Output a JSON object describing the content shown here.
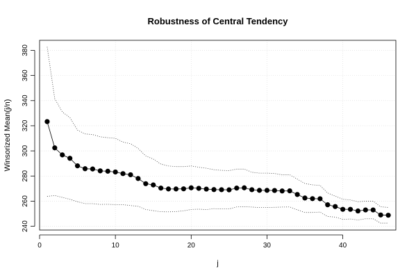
{
  "chart_data": {
    "type": "scatter",
    "title": "Robustness of Central Tendency",
    "xlabel": "j",
    "ylabel": "Winsorized Mean(j/n)",
    "xlim": [
      0,
      47
    ],
    "ylim": [
      237,
      388
    ],
    "xticks": [
      0,
      10,
      20,
      30,
      40
    ],
    "xtick_labels": [
      "0",
      "10",
      "20",
      "30",
      "40"
    ],
    "yticks": [
      240,
      260,
      280,
      300,
      320,
      340,
      360,
      380
    ],
    "ytick_labels": [
      "240",
      "260",
      "280",
      "300",
      "320",
      "340",
      "360",
      "380"
    ],
    "grid": true,
    "x": [
      1,
      2,
      3,
      4,
      5,
      6,
      7,
      8,
      9,
      10,
      11,
      12,
      13,
      14,
      15,
      16,
      17,
      18,
      19,
      20,
      21,
      22,
      23,
      24,
      25,
      26,
      27,
      28,
      29,
      30,
      31,
      32,
      33,
      34,
      35,
      36,
      37,
      38,
      39,
      40,
      41,
      42,
      43,
      44,
      45,
      46
    ],
    "series": [
      {
        "role": "mean",
        "values": [
          323.3,
          302.4,
          296.8,
          294.1,
          288.1,
          285.8,
          285.6,
          284.1,
          283.8,
          283.2,
          281.9,
          281.0,
          278.0,
          273.9,
          272.9,
          270.4,
          269.7,
          269.7,
          269.8,
          270.6,
          270.2,
          269.6,
          269.2,
          269.1,
          269.0,
          270.4,
          270.6,
          269.1,
          268.6,
          268.6,
          268.5,
          268.1,
          268.2,
          265.3,
          262.5,
          262.0,
          261.9,
          257.1,
          255.7,
          253.5,
          253.5,
          252.2,
          253.0,
          253.0,
          249.0,
          248.8
        ]
      },
      {
        "role": "upper",
        "values": [
          382.8,
          341.5,
          331.0,
          326.5,
          316.5,
          313.5,
          313.0,
          311.2,
          310.5,
          310.0,
          307.0,
          305.7,
          302.0,
          296.0,
          293.5,
          289.5,
          288.0,
          287.5,
          287.5,
          288.0,
          287.0,
          286.2,
          285.0,
          284.5,
          284.3,
          285.5,
          285.5,
          283.0,
          282.3,
          282.3,
          282.0,
          281.0,
          281.0,
          277.5,
          274.0,
          273.0,
          272.5,
          266.5,
          264.0,
          261.5,
          261.0,
          259.5,
          260.0,
          260.0,
          255.5,
          255.0
        ]
      },
      {
        "role": "lower",
        "values": [
          263.8,
          264.5,
          263.0,
          261.5,
          259.5,
          258.0,
          258.0,
          257.4,
          257.5,
          257.2,
          257.2,
          256.5,
          255.9,
          253.4,
          252.4,
          251.6,
          251.5,
          251.7,
          252.3,
          253.4,
          253.6,
          253.3,
          254.0,
          253.8,
          253.8,
          255.4,
          255.6,
          255.3,
          254.9,
          254.9,
          255.1,
          255.3,
          255.4,
          253.1,
          251.0,
          251.0,
          251.3,
          247.8,
          247.3,
          245.5,
          245.8,
          245.0,
          246.0,
          246.0,
          242.5,
          242.5
        ]
      }
    ]
  }
}
